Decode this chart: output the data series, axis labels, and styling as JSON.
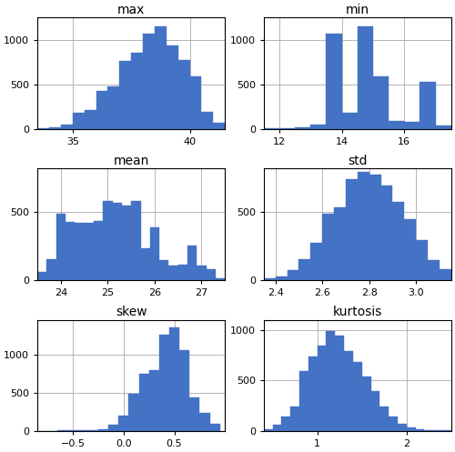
{
  "subplots": [
    {
      "title": "max",
      "xlim": [
        33.5,
        41.5
      ],
      "ylim": [
        0,
        1250
      ],
      "yticks": [
        0,
        500,
        1000
      ],
      "xticks": [
        35,
        40
      ],
      "bin_edges": [
        33.5,
        34.0,
        34.5,
        35.0,
        35.5,
        36.0,
        36.5,
        37.0,
        37.5,
        38.0,
        38.5,
        39.0,
        39.5,
        40.0,
        40.5,
        41.0,
        41.5
      ],
      "counts": [
        5,
        20,
        50,
        175,
        210,
        420,
        480,
        760,
        850,
        1070,
        1150,
        940,
        770,
        590,
        190,
        70
      ]
    },
    {
      "title": "min",
      "xlim": [
        11.5,
        17.5
      ],
      "ylim": [
        0,
        1250
      ],
      "yticks": [
        0,
        500,
        1000
      ],
      "xticks": [
        12,
        14,
        16
      ],
      "bin_edges": [
        11.5,
        12.0,
        12.5,
        13.0,
        13.5,
        14.0,
        14.5,
        15.0,
        15.5,
        16.0,
        16.5,
        17.0,
        17.5
      ],
      "counts": [
        5,
        8,
        12,
        45,
        1070,
        180,
        1150,
        590,
        90,
        75,
        530,
        35
      ]
    },
    {
      "title": "mean",
      "xlim": [
        23.5,
        27.5
      ],
      "ylim": [
        0,
        820
      ],
      "yticks": [
        0,
        500
      ],
      "xticks": [
        24,
        25,
        26,
        27
      ],
      "bin_edges": [
        23.5,
        23.7,
        23.9,
        24.1,
        24.3,
        24.5,
        24.7,
        24.9,
        25.1,
        25.3,
        25.5,
        25.7,
        25.9,
        26.1,
        26.3,
        26.5,
        26.7,
        26.9,
        27.1,
        27.3,
        27.5
      ],
      "counts": [
        60,
        150,
        490,
        430,
        420,
        420,
        435,
        580,
        570,
        545,
        580,
        235,
        390,
        145,
        105,
        115,
        255,
        105,
        75,
        10
      ]
    },
    {
      "title": "std",
      "xlim": [
        2.35,
        3.15
      ],
      "ylim": [
        0,
        820
      ],
      "yticks": [
        0,
        500
      ],
      "xticks": [
        2.4,
        2.6,
        2.8,
        3.0
      ],
      "bin_edges": [
        2.35,
        2.4,
        2.45,
        2.5,
        2.55,
        2.6,
        2.65,
        2.7,
        2.75,
        2.8,
        2.85,
        2.9,
        2.95,
        3.0,
        3.05,
        3.1,
        3.15
      ],
      "counts": [
        8,
        25,
        70,
        155,
        275,
        490,
        535,
        745,
        795,
        775,
        695,
        575,
        445,
        295,
        145,
        75
      ]
    },
    {
      "title": "skew",
      "xlim": [
        -0.85,
        1.0
      ],
      "ylim": [
        0,
        1450
      ],
      "yticks": [
        0,
        500,
        1000
      ],
      "xticks": [
        -0.5,
        0.0,
        0.5
      ],
      "bin_edges": [
        -0.85,
        -0.75,
        -0.65,
        -0.55,
        -0.45,
        -0.35,
        -0.25,
        -0.15,
        -0.05,
        0.05,
        0.15,
        0.25,
        0.35,
        0.45,
        0.55,
        0.65,
        0.75,
        0.85,
        0.95
      ],
      "counts": [
        3,
        3,
        5,
        8,
        10,
        14,
        18,
        75,
        195,
        490,
        745,
        790,
        1250,
        1350,
        1050,
        440,
        240,
        90
      ]
    },
    {
      "title": "kurtosis",
      "xlim": [
        0.4,
        2.5
      ],
      "ylim": [
        0,
        1100
      ],
      "yticks": [
        0,
        500,
        1000
      ],
      "xticks": [
        1,
        2
      ],
      "bin_edges": [
        0.4,
        0.5,
        0.6,
        0.7,
        0.8,
        0.9,
        1.0,
        1.1,
        1.2,
        1.3,
        1.4,
        1.5,
        1.6,
        1.7,
        1.8,
        1.9,
        2.0,
        2.1,
        2.2,
        2.3,
        2.4,
        2.5
      ],
      "counts": [
        20,
        65,
        140,
        240,
        590,
        740,
        845,
        990,
        940,
        790,
        685,
        540,
        390,
        240,
        140,
        72,
        33,
        14,
        7,
        4,
        3
      ]
    }
  ],
  "bar_color": "#4472c4",
  "grid_color": "#aaaaaa",
  "title_fontsize": 10,
  "tick_fontsize": 8,
  "figure_width": 5.0,
  "figure_height": 4.97,
  "dpi": 100
}
